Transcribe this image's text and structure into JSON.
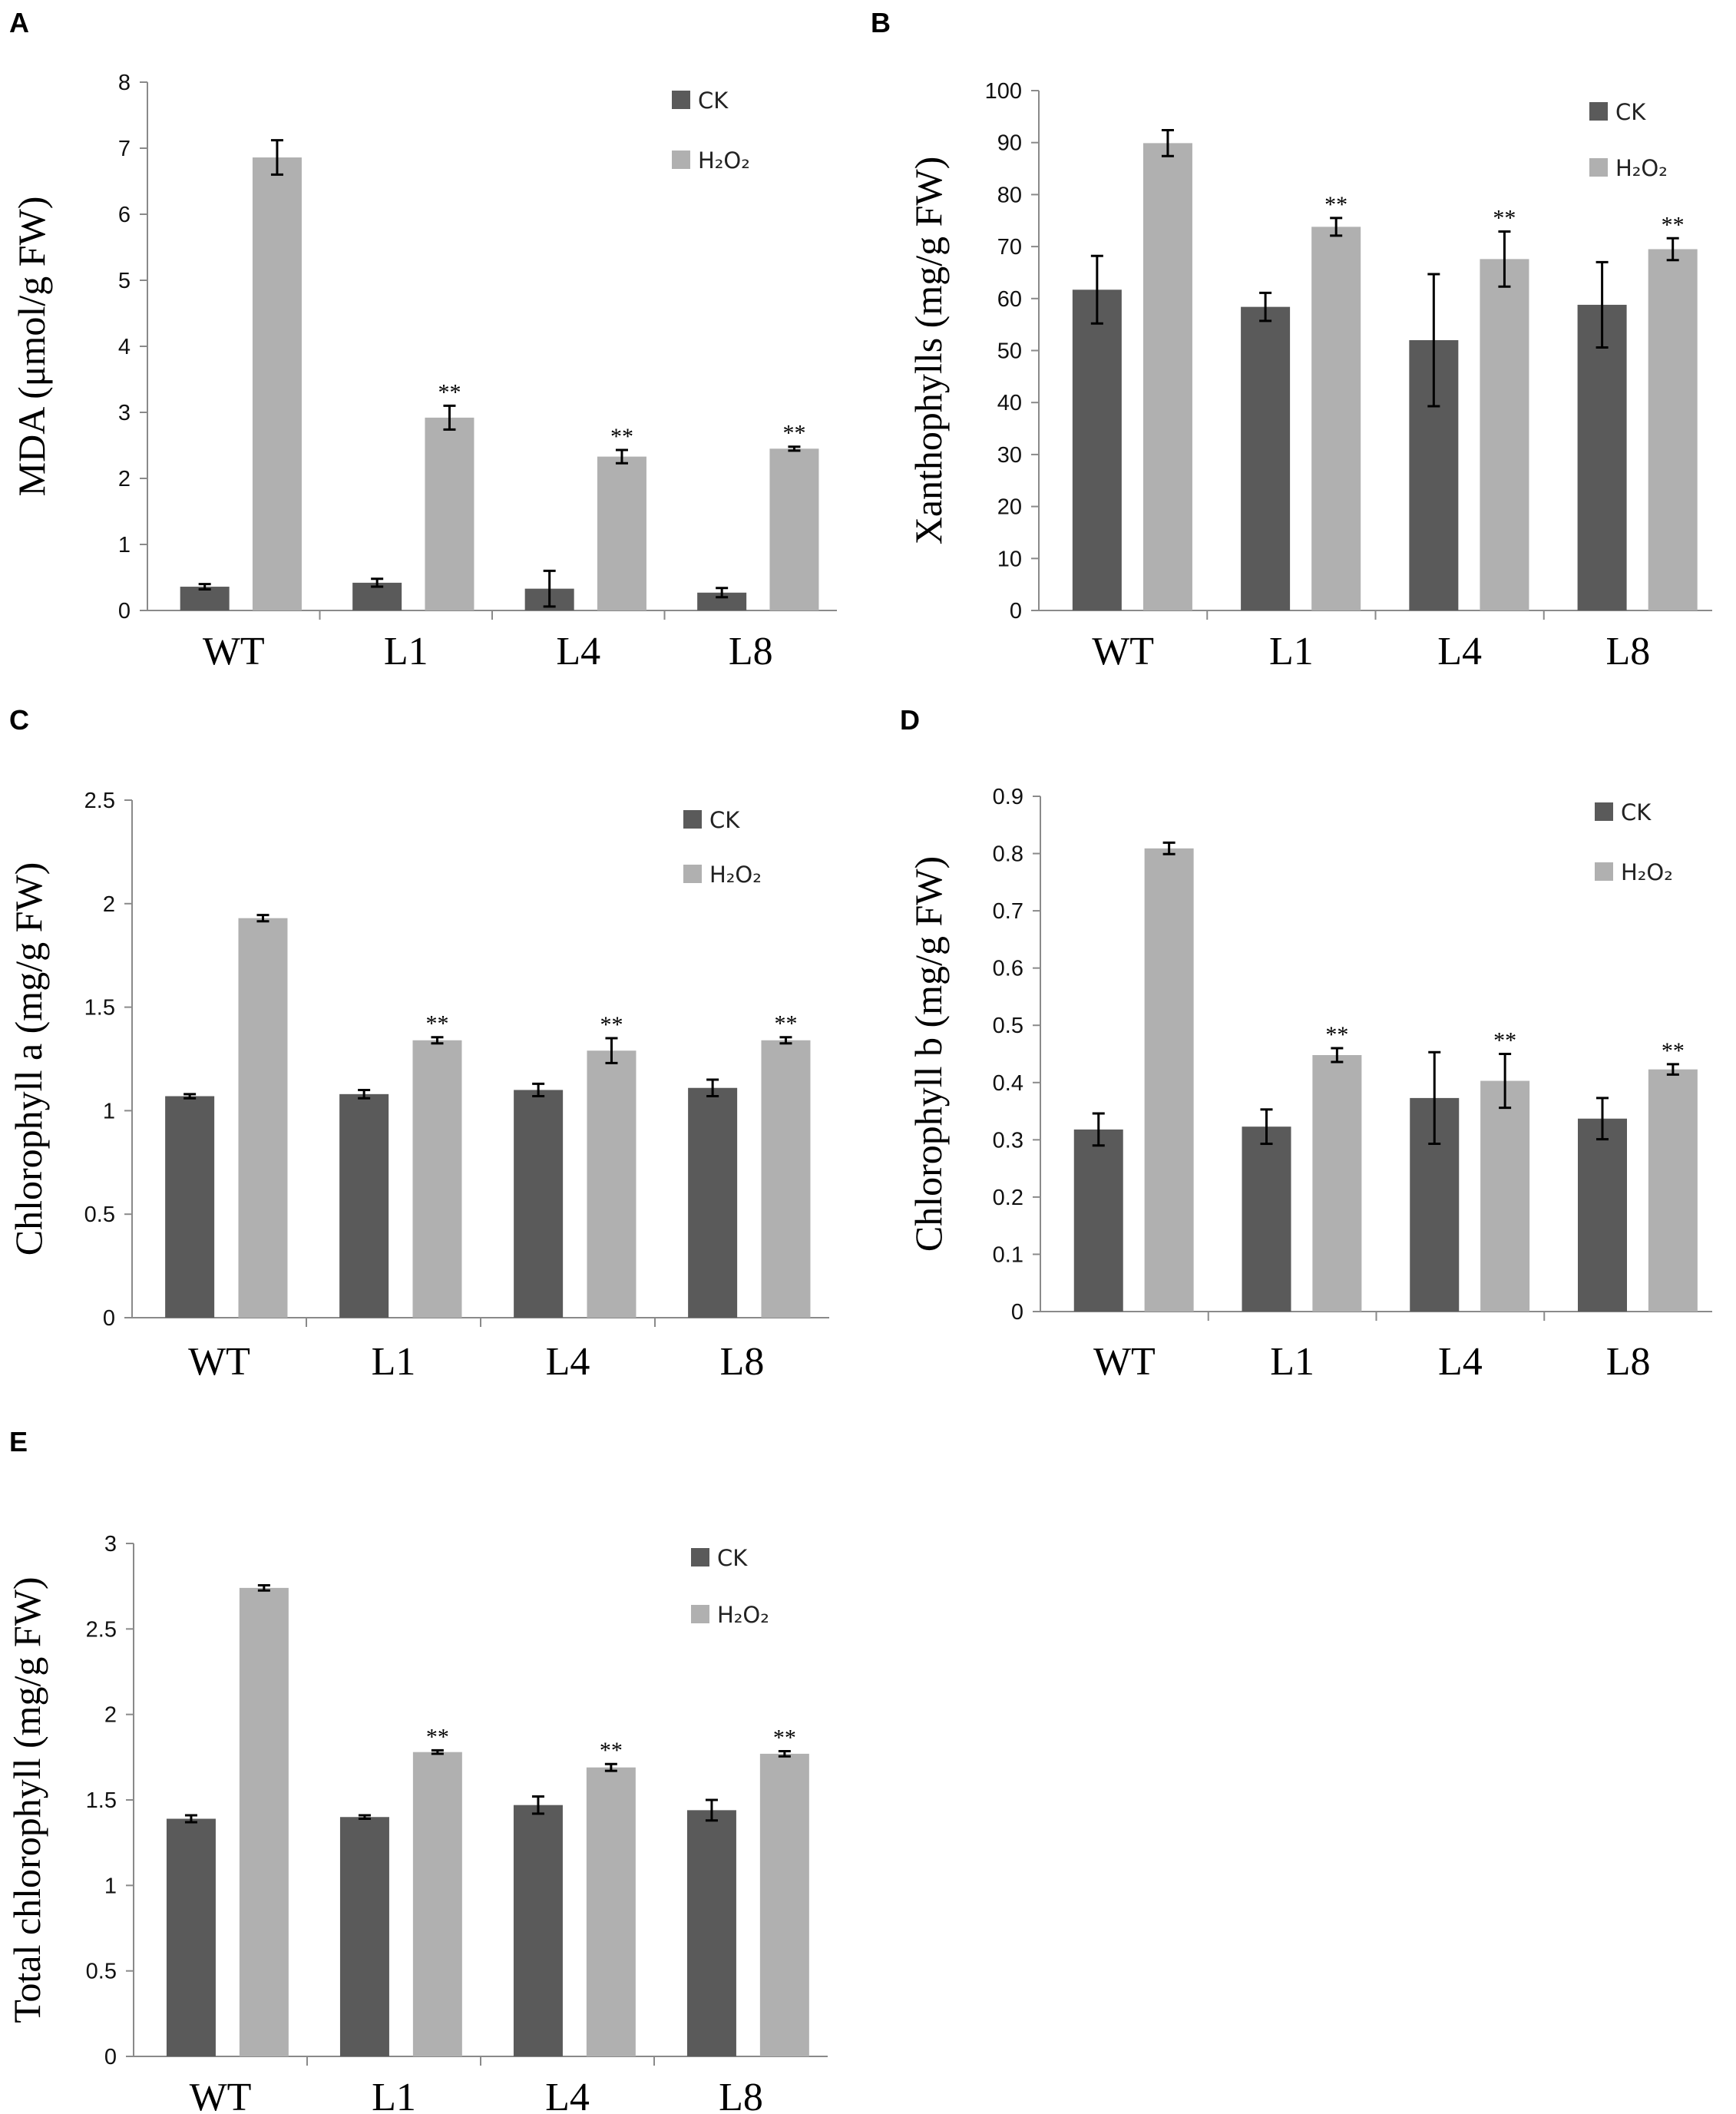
{
  "chart_data": [
    {
      "panel": "A",
      "type": "bar",
      "ylabel": "MDA (μmol/g FW)",
      "ylim": [
        0,
        8
      ],
      "yticks": [
        "0",
        "1",
        "2",
        "3",
        "4",
        "5",
        "6",
        "7",
        "8"
      ],
      "categories": [
        "WT",
        "L1",
        "L4",
        "L8"
      ],
      "series": [
        {
          "name": "CK",
          "color": "#5a5a5a",
          "values": [
            0.36,
            0.42,
            0.33,
            0.27
          ],
          "errors": [
            0.04,
            0.06,
            0.27,
            0.07
          ]
        },
        {
          "name": "H₂O₂",
          "color": "#b0b0b0",
          "values": [
            6.86,
            2.92,
            2.33,
            2.45
          ],
          "errors": [
            0.26,
            0.18,
            0.1,
            0.03
          ]
        }
      ],
      "annotations": [
        "",
        "**",
        "**",
        "**"
      ],
      "legend": "top-right"
    },
    {
      "panel": "B",
      "type": "bar",
      "ylabel": "Xanthophylls (mg/g FW)",
      "ylim": [
        0,
        100
      ],
      "yticks": [
        "0",
        "10",
        "20",
        "30",
        "40",
        "50",
        "60",
        "70",
        "80",
        "90",
        "100"
      ],
      "categories": [
        "WT",
        "L1",
        "L4",
        "L8"
      ],
      "series": [
        {
          "name": "CK",
          "color": "#5a5a5a",
          "values": [
            61.7,
            58.4,
            52.0,
            58.8
          ],
          "errors": [
            6.5,
            2.7,
            12.7,
            8.2
          ]
        },
        {
          "name": "H₂O₂",
          "color": "#b0b0b0",
          "values": [
            89.9,
            73.8,
            67.6,
            69.5
          ],
          "errors": [
            2.5,
            1.7,
            5.3,
            2.1
          ]
        }
      ],
      "annotations": [
        "",
        "**",
        "**",
        "**"
      ],
      "legend": "top-right"
    },
    {
      "panel": "C",
      "type": "bar",
      "ylabel": "Chlorophyll a (mg/g FW)",
      "ylim": [
        0,
        2.5
      ],
      "yticks": [
        "0",
        "0.5",
        "1",
        "1.5",
        "2",
        "2.5"
      ],
      "categories": [
        "WT",
        "L1",
        "L4",
        "L8"
      ],
      "series": [
        {
          "name": "CK",
          "color": "#5a5a5a",
          "values": [
            1.07,
            1.08,
            1.1,
            1.11
          ],
          "errors": [
            0.01,
            0.02,
            0.03,
            0.04
          ]
        },
        {
          "name": "H₂O₂",
          "color": "#b0b0b0",
          "values": [
            1.93,
            1.34,
            1.29,
            1.34
          ],
          "errors": [
            0.015,
            0.015,
            0.06,
            0.015
          ]
        }
      ],
      "annotations": [
        "",
        "**",
        "**",
        "**"
      ],
      "legend": "top-right"
    },
    {
      "panel": "D",
      "type": "bar",
      "ylabel": "Chlorophyll b (mg/g FW)",
      "ylim": [
        0,
        0.9
      ],
      "yticks": [
        "0",
        "0.1",
        "0.2",
        "0.3",
        "0.4",
        "0.5",
        "0.6",
        "0.7",
        "0.8",
        "0.9"
      ],
      "categories": [
        "WT",
        "L1",
        "L4",
        "L8"
      ],
      "series": [
        {
          "name": "CK",
          "color": "#5a5a5a",
          "values": [
            0.318,
            0.323,
            0.373,
            0.337
          ],
          "errors": [
            0.028,
            0.03,
            0.08,
            0.036
          ]
        },
        {
          "name": "H₂O₂",
          "color": "#b0b0b0",
          "values": [
            0.809,
            0.448,
            0.403,
            0.423
          ],
          "errors": [
            0.01,
            0.012,
            0.047,
            0.009
          ]
        }
      ],
      "annotations": [
        "",
        "**",
        "**",
        "**"
      ],
      "legend": "top-right"
    },
    {
      "panel": "E",
      "type": "bar",
      "ylabel": "Total chlorophyll (mg/g FW)",
      "ylim": [
        0,
        3
      ],
      "yticks": [
        "0",
        "0.5",
        "1",
        "1.5",
        "2",
        "2.5",
        "3"
      ],
      "categories": [
        "WT",
        "L1",
        "L4",
        "L8"
      ],
      "series": [
        {
          "name": "CK",
          "color": "#5a5a5a",
          "values": [
            1.39,
            1.4,
            1.47,
            1.44
          ],
          "errors": [
            0.02,
            0.01,
            0.05,
            0.06
          ]
        },
        {
          "name": "H₂O₂",
          "color": "#b0b0b0",
          "values": [
            2.74,
            1.78,
            1.69,
            1.77
          ],
          "errors": [
            0.015,
            0.01,
            0.02,
            0.015
          ]
        }
      ],
      "annotations": [
        "",
        "**",
        "**",
        "**"
      ],
      "legend": "top-right"
    }
  ]
}
